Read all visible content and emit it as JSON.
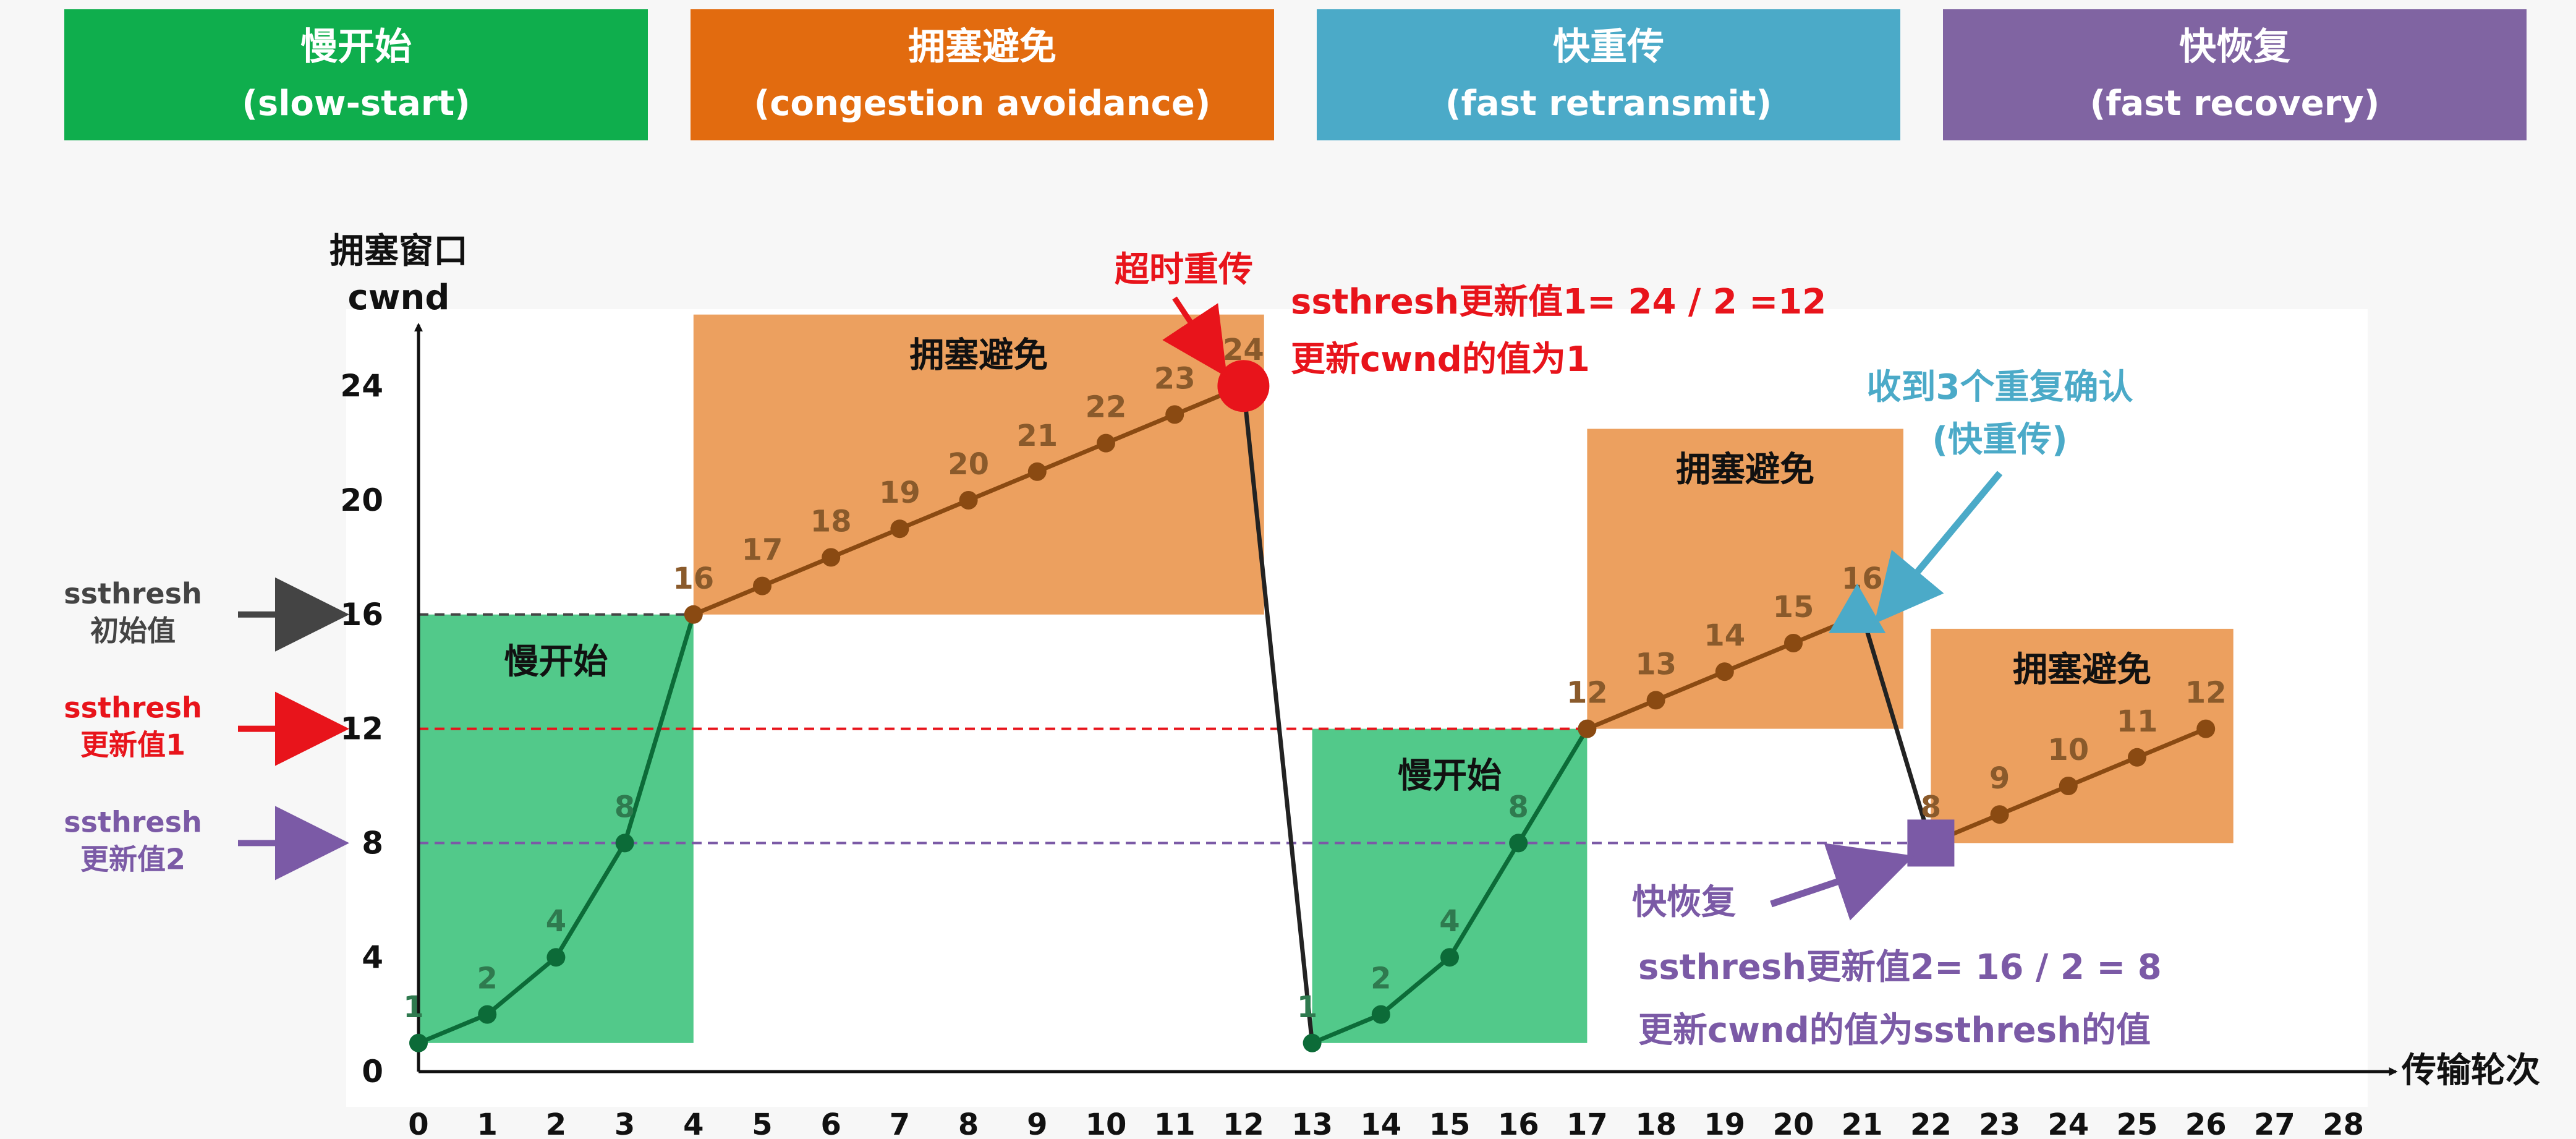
{
  "banners": [
    {
      "title": "慢开始",
      "subtitle": "(slow-start)",
      "color": "#0fae4d"
    },
    {
      "title": "拥塞避免",
      "subtitle": "(congestion avoidance)",
      "color": "#e26b0f"
    },
    {
      "title": "快重传",
      "subtitle": "(fast retransmit)",
      "color": "#4baac8"
    },
    {
      "title": "快恢复",
      "subtitle": "(fast recovery)",
      "color": "#8064a2"
    }
  ],
  "chart_data": {
    "type": "line",
    "ylabel_line1": "拥塞窗口",
    "ylabel_line2": "cwnd",
    "xlabel": "传输轮次",
    "xlim": [
      0,
      28
    ],
    "ylim": [
      0,
      26
    ],
    "x_ticks": [
      0,
      1,
      2,
      3,
      4,
      5,
      6,
      7,
      8,
      9,
      10,
      11,
      12,
      13,
      14,
      15,
      16,
      17,
      18,
      19,
      20,
      21,
      22,
      23,
      24,
      25,
      26,
      27,
      28
    ],
    "y_ticks": [
      0,
      4,
      8,
      12,
      16,
      20,
      24
    ],
    "series": [
      {
        "x": [
          0,
          1,
          2,
          3,
          4,
          5,
          6,
          7,
          8,
          9,
          10,
          11,
          12,
          13,
          14,
          15,
          16,
          17,
          18,
          19,
          20,
          21,
          22,
          23,
          24,
          25,
          26
        ],
        "values": [
          1,
          2,
          4,
          8,
          16,
          17,
          18,
          19,
          20,
          21,
          22,
          23,
          24,
          1,
          2,
          4,
          8,
          12,
          13,
          14,
          15,
          16,
          8,
          9,
          10,
          11,
          12
        ],
        "color": "#8a4a12"
      }
    ],
    "point_labels": [
      "1",
      "2",
      "4",
      "8",
      "16",
      "17",
      "18",
      "19",
      "20",
      "21",
      "22",
      "23",
      "24",
      "1",
      "2",
      "4",
      "8",
      "12",
      "13",
      "14",
      "15",
      "16",
      "8",
      "9",
      "10",
      "11",
      "12"
    ],
    "thresholds": [
      {
        "value": 16,
        "label_line1": "ssthresh",
        "label_line2": "初始值",
        "color": "#444444"
      },
      {
        "value": 12,
        "label_line1": "ssthresh",
        "label_line2": "更新值1",
        "color": "#e8141b"
      },
      {
        "value": 8,
        "label_line1": "ssthresh",
        "label_line2": "更新值2",
        "color": "#7b5aa6"
      }
    ],
    "regions": [
      {
        "label": "慢开始",
        "phase": "slow-start",
        "x0": 0,
        "x1": 4,
        "y0": 1,
        "y1": 16
      },
      {
        "label": "拥塞避免",
        "phase": "congestion-avoidance",
        "x0": 4,
        "x1": 12.3,
        "y0": 16,
        "y1": 26.5
      },
      {
        "label": "慢开始",
        "phase": "slow-start",
        "x0": 13,
        "x1": 17,
        "y0": 1,
        "y1": 12
      },
      {
        "label": "拥塞避免",
        "phase": "congestion-avoidance",
        "x0": 17,
        "x1": 21.6,
        "y0": 12,
        "y1": 22.5
      },
      {
        "label": "拥塞避免",
        "phase": "congestion-avoidance",
        "x0": 22,
        "x1": 26.4,
        "y0": 8,
        "y1": 15.5
      }
    ],
    "events": {
      "timeout": {
        "x": 12,
        "y": 24,
        "label": "超时重传",
        "note1": "ssthresh更新值1= 24 / 2 =12",
        "note2": "更新cwnd的值为1",
        "color": "#e8141b"
      },
      "fast_retransmit": {
        "x": 21,
        "y": 16,
        "label1": "收到3个重复确认",
        "label2": "(快重传)",
        "color": "#4baac8"
      },
      "fast_recovery": {
        "x": 22,
        "y": 8,
        "label": "快恢复",
        "note1": "ssthresh更新值2= 16 / 2 = 8",
        "note2": "更新cwnd的值为ssthresh的值",
        "color": "#7b5aa6"
      }
    },
    "colors": {
      "slow_start_fill": "#52c98a",
      "congestion_fill": "#eca05f",
      "axis": "#111111"
    }
  }
}
